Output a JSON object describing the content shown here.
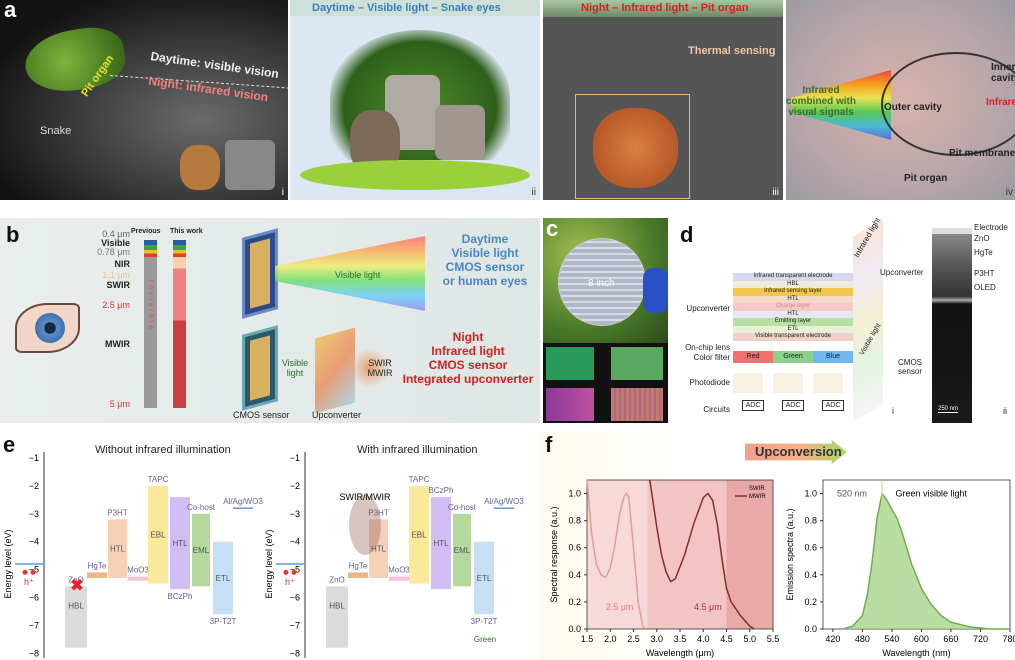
{
  "panel_a": {
    "label": "a",
    "i": {
      "pit_organ": "Pit organ",
      "daytime": "Daytime: visible vision",
      "night": "Night: infrared vision",
      "snake": "Snake",
      "roman": "i"
    },
    "ii": {
      "title": "Daytime – Visible light – Snake eyes",
      "roman": "ii"
    },
    "iii": {
      "title": "Night – Infrared light – Pit organ",
      "thermal": "Thermal sensing",
      "roman": "iii"
    },
    "iv": {
      "inner_cavity": "Inner cavity",
      "infrared": "Infrared",
      "combined": "Infrared combined with visual signals",
      "outer_cavity": "Outer cavity",
      "pit_membrane": "Pit membrane",
      "pit_organ": "Pit organ",
      "roman": "iv"
    }
  },
  "panel_b": {
    "label": "b",
    "previous": "Previous",
    "this_work": "This work",
    "scale": [
      "0.4 μm",
      "Visible",
      "0.78 μm",
      "NIR",
      "1.1 μm",
      "SWIR",
      "2.5 μm",
      "MWIR",
      "5 μm"
    ],
    "invisible": "Invisible",
    "visible_light_top": "Visible light",
    "day_text": [
      "Daytime",
      "Visible light",
      "CMOS sensor",
      "or human eyes"
    ],
    "visible_light_bottom": "Visible light",
    "ir_text": "SWIR MWIR",
    "night_text": [
      "Night",
      "Infrared light",
      "CMOS sensor",
      "Integrated upconverter"
    ],
    "cmos_sensor": "CMOS sensor",
    "upconverter": "Upconverter",
    "colors": {
      "day": "#4a86c5",
      "night": "#d42020"
    }
  },
  "panel_c": {
    "label": "c",
    "wafer": "8 inch"
  },
  "panel_d": {
    "label": "d",
    "left_labels": [
      "Upconverter",
      "On-chip lens",
      "Color filter",
      "Photodiode",
      "Circuits"
    ],
    "layers": [
      "Infrared transparent electrode",
      "HBL",
      "Infrared sensing layer",
      "HTL",
      "Charge layer",
      "HTL",
      "Emitting layer",
      "ETL",
      "Visible transparent electrode"
    ],
    "filters": [
      "Red",
      "Green",
      "Blue"
    ],
    "adc": "ADC",
    "infrared_light": "Infrared light",
    "visible_light": "Visible light",
    "roman_i": "i",
    "tem": {
      "upconverter": "Upconverter",
      "cmos": "CMOS sensor",
      "layers": [
        "Electrode",
        "ZnO",
        "HgTe",
        "P3HT",
        "OLED"
      ],
      "scale_bar": "250 nm",
      "roman": "ii"
    }
  },
  "panel_e": {
    "label": "e",
    "ylabel": "Energy level (eV)",
    "yticks": [
      -1,
      -2,
      -3,
      -4,
      -5,
      -6,
      -7,
      -8
    ],
    "left_title": "Without infrared illumination",
    "right_title": "With infrared illumination",
    "swir_mwir": "SWIR/MWIR",
    "green": "Green",
    "hole": "h⁺",
    "levels": [
      {
        "label": "",
        "material": "",
        "lumo": -4.8,
        "homo": -4.8,
        "color": "#5b9bd5"
      },
      {
        "label": "HBL",
        "material": "ZnO",
        "lumo": -5.6,
        "homo": -7.8,
        "color": "#cfcfcf"
      },
      {
        "label": "",
        "material": "HgTe",
        "lumo": -5.1,
        "homo": -5.3,
        "color": "#e0a060"
      },
      {
        "label": "HTL",
        "material": "P3HT",
        "lumo": -3.2,
        "homo": -5.3,
        "color": "#f2c2a0"
      },
      {
        "label": "",
        "material": "MoO3",
        "lumo": -5.25,
        "homo": -5.4,
        "color": "#f0b0c8"
      },
      {
        "label": "EBL",
        "material": "TAPC",
        "lumo": -2.0,
        "homo": -5.5,
        "color": "#f8e07a"
      },
      {
        "label": "HTL",
        "material": "BCzPh",
        "lumo": -2.4,
        "homo": -5.7,
        "color": "#c3a6f0"
      },
      {
        "label": "EML",
        "material": "Co-host",
        "lumo": -3.0,
        "homo": -5.6,
        "color": "#9ccc7c"
      },
      {
        "label": "ETL",
        "material": "3P-T2T",
        "lumo": -4.0,
        "homo": -6.6,
        "color": "#b4d4f0"
      },
      {
        "label": "",
        "material": "Al/Ag/WO3",
        "lumo": -2.8,
        "homo": -2.8,
        "color": "#5b9bd5"
      }
    ]
  },
  "panel_f": {
    "label": "f",
    "arrow": "Upconversion",
    "chart_data": [
      {
        "type": "line",
        "xlabel": "Wavelength (μm)",
        "ylabel": "Spectral response (a.u.)",
        "xlim": [
          1.5,
          5.5
        ],
        "ylim": [
          0,
          1.1
        ],
        "xticks": [
          1.5,
          2.0,
          2.5,
          3.0,
          3.5,
          4.0,
          4.5,
          5.0,
          5.5
        ],
        "yticks": [
          0.0,
          0.2,
          0.4,
          0.6,
          0.8,
          1.0
        ],
        "bands": [
          {
            "from": 1.5,
            "to": 2.8,
            "color": "#f7d9d9"
          },
          {
            "from": 2.8,
            "to": 4.5,
            "color": "#f3c4c4"
          },
          {
            "from": 4.5,
            "to": 5.5,
            "color": "#e9a9a9"
          }
        ],
        "annotations": [
          "2.5 μm",
          "4.5 μm"
        ],
        "legend": "top-right",
        "series": [
          {
            "name": "SWIR",
            "color": "#e59a9a",
            "x": [
              1.5,
              1.6,
              1.7,
              1.8,
              1.9,
              2.0,
              2.1,
              2.2,
              2.3,
              2.35,
              2.4,
              2.5,
              2.6,
              2.7,
              2.75
            ],
            "y": [
              1.1,
              0.7,
              0.48,
              0.4,
              0.38,
              0.45,
              0.62,
              0.85,
              0.98,
              1.0,
              0.97,
              0.6,
              0.2,
              0.02,
              0.0
            ]
          },
          {
            "name": "MWIR",
            "color": "#8c2a2a",
            "x": [
              2.85,
              3.0,
              3.1,
              3.2,
              3.3,
              3.4,
              3.6,
              3.8,
              4.0,
              4.1,
              4.2,
              4.3,
              4.4,
              4.5,
              4.6,
              4.8,
              5.0,
              5.1
            ],
            "y": [
              1.1,
              0.75,
              0.55,
              0.42,
              0.35,
              0.37,
              0.55,
              0.78,
              0.97,
              1.0,
              0.95,
              0.78,
              0.52,
              0.3,
              0.2,
              0.1,
              0.02,
              0.0
            ]
          }
        ]
      },
      {
        "type": "area",
        "xlabel": "Wavelength (nm)",
        "ylabel": "Emission spectra (a.u.)",
        "xlim": [
          400,
          780
        ],
        "ylim": [
          0,
          1.1
        ],
        "xticks": [
          420,
          480,
          540,
          600,
          660,
          720,
          780
        ],
        "yticks": [
          0.0,
          0.2,
          0.4,
          0.6,
          0.8,
          1.0
        ],
        "annotations": [
          "520 nm",
          "Green visible light"
        ],
        "series": [
          {
            "color": "#6fae4f",
            "x": [
              440,
              460,
              480,
              490,
              500,
              510,
              520,
              530,
              540,
              550,
              560,
              580,
              600,
              620,
              640,
              660,
              700,
              740,
              780
            ],
            "y": [
              0.0,
              0.02,
              0.1,
              0.25,
              0.5,
              0.82,
              1.0,
              0.95,
              0.88,
              0.82,
              0.72,
              0.48,
              0.3,
              0.18,
              0.1,
              0.05,
              0.015,
              0.0,
              0.0
            ]
          }
        ]
      }
    ]
  }
}
